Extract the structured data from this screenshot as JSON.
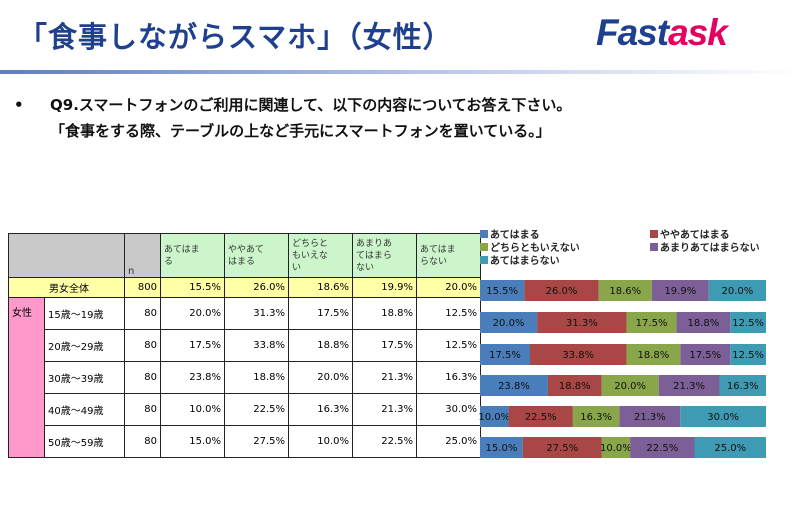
{
  "header": {
    "title": "「食事しながらスマホ」（女性）",
    "logo_part1": "Fast",
    "logo_part2": "ask"
  },
  "question": {
    "bullet": "•",
    "line1": "Q9.スマートフォンのご利用に関連して、以下の内容についてお答え下さい。",
    "line2": "「食事をする際、テーブルの上など手元にスマートフォンを置いている。」"
  },
  "table": {
    "n_header": "n",
    "group_label": "女性",
    "options": [
      "あてはまる",
      "ややあてはまる",
      "どちらともいえない",
      "あまりあてはまらない",
      "あてはまらない"
    ],
    "option_display": [
      "あてはま\nる",
      "ややあて\nはまる",
      "どちらと\nもいえな\nい",
      "あまりあ\nてはまら\nない",
      "あてはま\nらない"
    ]
  },
  "chart_data": {
    "type": "bar",
    "orientation": "horizontal",
    "stacked": "100%",
    "categories": [
      "男女全体",
      "15歳～19歳",
      "20歳～29歳",
      "30歳～39歳",
      "40歳～49歳",
      "50歳～59歳"
    ],
    "n": [
      800,
      80,
      80,
      80,
      80,
      80
    ],
    "series": [
      {
        "name": "あてはまる",
        "color": "#4a7ebb",
        "values": [
          15.5,
          20.0,
          17.5,
          23.8,
          10.0,
          15.0
        ]
      },
      {
        "name": "ややあてはまる",
        "color": "#a94646",
        "values": [
          26.0,
          31.3,
          33.8,
          18.8,
          22.5,
          27.5
        ]
      },
      {
        "name": "どちらともいえない",
        "color": "#8aa64b",
        "values": [
          18.6,
          17.5,
          18.8,
          20.0,
          16.3,
          10.0
        ]
      },
      {
        "name": "あまりあてはまらない",
        "color": "#7b5f96",
        "values": [
          19.9,
          18.8,
          17.5,
          21.3,
          21.3,
          22.5
        ]
      },
      {
        "name": "あてはまらない",
        "color": "#3f9bb3",
        "values": [
          20.0,
          12.5,
          12.5,
          16.3,
          30.0,
          25.0
        ]
      }
    ],
    "value_labels": [
      [
        "15.5%",
        "26.0%",
        "18.6%",
        "19.9%",
        "20.0%"
      ],
      [
        "20.0%",
        "31.3%",
        "17.5%",
        "18.8%",
        "12.5%"
      ],
      [
        "17.5%",
        "33.8%",
        "18.8%",
        "17.5%",
        "12.5%"
      ],
      [
        "23.8%",
        "18.8%",
        "20.0%",
        "21.3%",
        "16.3%"
      ],
      [
        "10.0%",
        "22.5%",
        "16.3%",
        "21.3%",
        "30.0%"
      ],
      [
        "15.0%",
        "27.5%",
        "10.0%",
        "22.5%",
        "25.0%"
      ]
    ],
    "legend_position": "top",
    "grid": false
  }
}
